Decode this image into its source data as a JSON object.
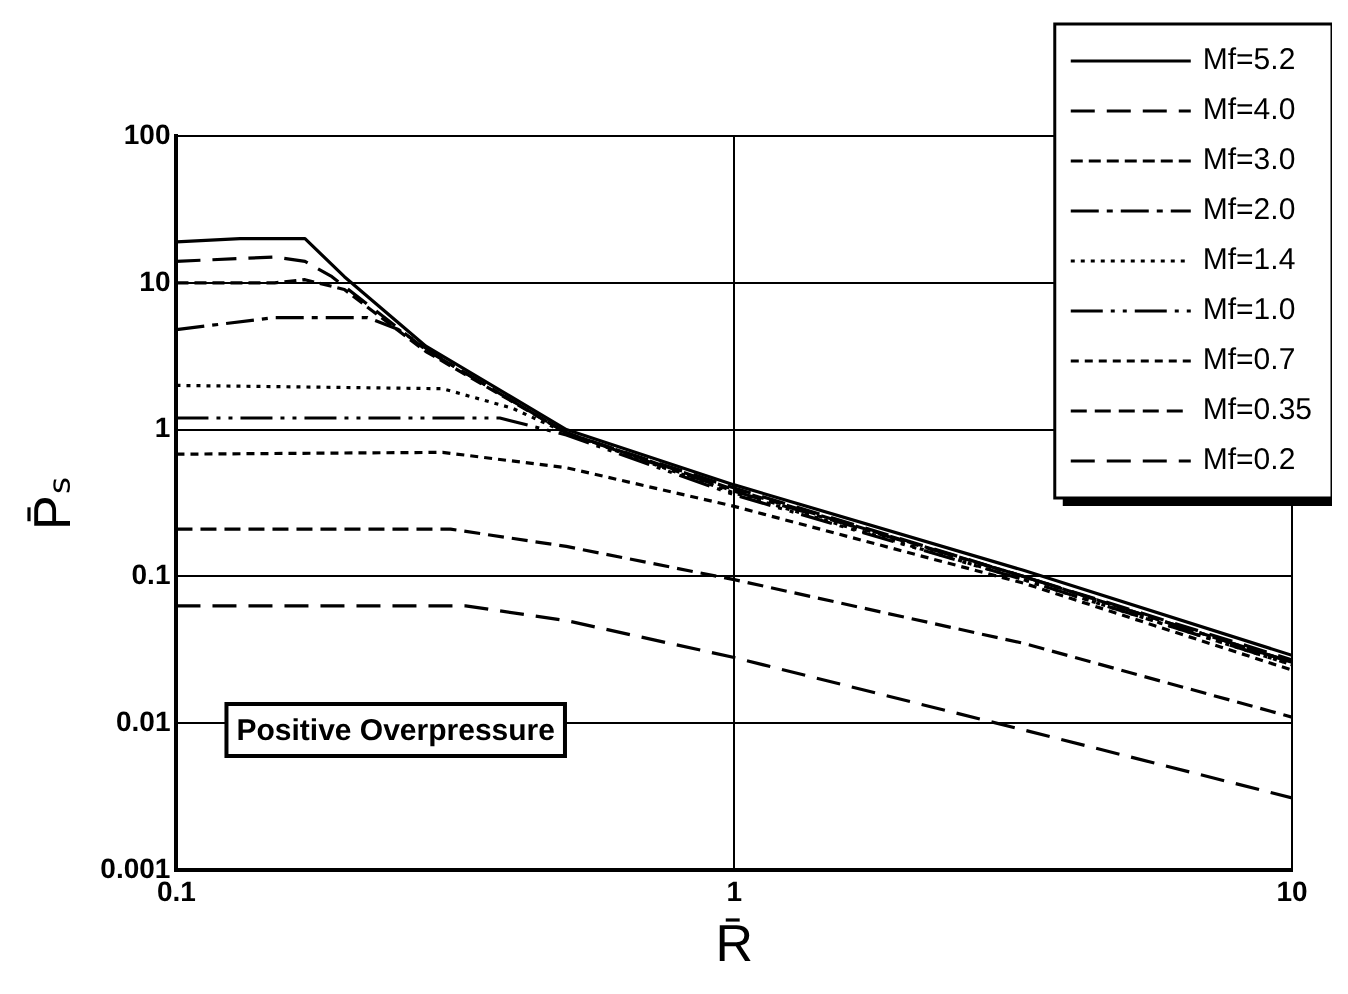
{
  "chart_data": {
    "type": "line",
    "xlabel": "R̄",
    "ylabel": "P̄ₛ",
    "log": "xy",
    "grid": true,
    "legend": "top right",
    "xlim": [
      0.1,
      10
    ],
    "xticks": [
      0.1,
      1,
      10
    ],
    "ylim": [
      0.001,
      100
    ],
    "yticks": [
      0.001,
      0.01,
      0.1,
      1,
      10,
      100
    ],
    "annotations": [
      "Positive Overpressure"
    ],
    "series": [
      {
        "name": "Mf=5.2",
        "color": "#000000",
        "line_style": "solid",
        "x": [
          0.1,
          0.13,
          0.17,
          0.2,
          0.28,
          0.5,
          1,
          3.3,
          10
        ],
        "values": [
          19,
          20,
          20,
          11,
          3.7,
          1.0,
          0.42,
          0.11,
          0.029
        ]
      },
      {
        "name": "Mf=4.0",
        "color": "#000000",
        "line_style": "dashed",
        "x": [
          0.1,
          0.15,
          0.17,
          0.19,
          0.28,
          0.5,
          1,
          3.3,
          10
        ],
        "values": [
          14,
          15,
          14,
          11,
          3.5,
          0.95,
          0.4,
          0.1,
          0.027
        ]
      },
      {
        "name": "Mf=3.0",
        "color": "#000000",
        "line_style": "dashed",
        "x": [
          0.1,
          0.15,
          0.17,
          0.2,
          0.28,
          0.5,
          1,
          3.3,
          10
        ],
        "values": [
          10,
          10,
          10.5,
          9,
          3.4,
          0.95,
          0.39,
          0.1,
          0.026
        ]
      },
      {
        "name": "Mf=2.0",
        "color": "#000000",
        "line_style": "dashed",
        "x": [
          0.1,
          0.15,
          0.22,
          0.25,
          0.3,
          0.5,
          1,
          3.3,
          10
        ],
        "values": [
          4.8,
          5.8,
          5.8,
          4.8,
          3,
          0.95,
          0.38,
          0.1,
          0.026
        ]
      },
      {
        "name": "Mf=1.4",
        "color": "#000000",
        "line_style": "dotted",
        "x": [
          0.1,
          0.3,
          0.4,
          0.5,
          1,
          3.3,
          10
        ],
        "values": [
          2,
          1.9,
          1.4,
          0.95,
          0.37,
          0.095,
          0.025
        ]
      },
      {
        "name": "Mf=1.0",
        "color": "#000000",
        "line_style": "dashed",
        "x": [
          0.1,
          0.38,
          0.5,
          1,
          3.3,
          10
        ],
        "values": [
          1.2,
          1.2,
          0.92,
          0.36,
          0.095,
          0.025
        ]
      },
      {
        "name": "Mf=0.7",
        "color": "#000000",
        "line_style": "dashed",
        "x": [
          0.1,
          0.3,
          0.5,
          1,
          3.3,
          10
        ],
        "values": [
          0.68,
          0.7,
          0.55,
          0.3,
          0.09,
          0.023
        ]
      },
      {
        "name": "Mf=0.35",
        "color": "#000000",
        "line_style": "dashed",
        "x": [
          0.1,
          0.31,
          0.5,
          1,
          3.3,
          10
        ],
        "values": [
          0.21,
          0.21,
          0.16,
          0.095,
          0.035,
          0.011
        ]
      },
      {
        "name": "Mf=0.2",
        "color": "#000000",
        "line_style": "dashed",
        "x": [
          0.1,
          0.33,
          0.5,
          1,
          3.3,
          10
        ],
        "values": [
          0.063,
          0.063,
          0.05,
          0.028,
          0.009,
          0.0031
        ]
      }
    ]
  }
}
